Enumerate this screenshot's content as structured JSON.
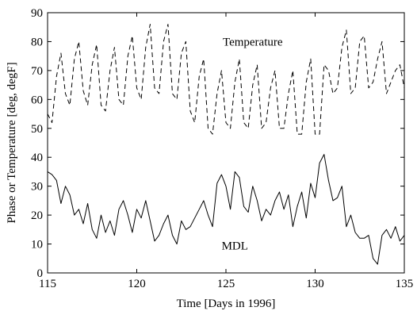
{
  "chart_data": {
    "type": "line",
    "title": "",
    "xlabel": "Time [Days in 1996]",
    "ylabel": "Phase or Temperature [deg, degF]",
    "xlim": [
      115,
      135
    ],
    "ylim": [
      0,
      90
    ],
    "xticks": [
      115,
      120,
      125,
      130,
      135
    ],
    "yticks": [
      0,
      10,
      20,
      30,
      40,
      50,
      60,
      70,
      80,
      90
    ],
    "grid": false,
    "annotations": [
      {
        "text": "Temperature",
        "x": 126.5,
        "y": 80
      },
      {
        "text": "MDL",
        "x": 125.5,
        "y": 9.5
      }
    ],
    "series": [
      {
        "style": "dashed",
        "color": "#000000",
        "x": [
          115.0,
          115.25,
          115.5,
          115.75,
          116.0,
          116.25,
          116.5,
          116.75,
          117.0,
          117.25,
          117.5,
          117.75,
          118.0,
          118.25,
          118.5,
          118.75,
          119.0,
          119.25,
          119.5,
          119.75,
          120.0,
          120.25,
          120.5,
          120.75,
          121.0,
          121.25,
          121.5,
          121.75,
          122.0,
          122.25,
          122.5,
          122.75,
          123.0,
          123.25,
          123.5,
          123.75,
          124.0,
          124.25,
          124.5,
          124.75,
          125.0,
          125.25,
          125.5,
          125.75,
          126.0,
          126.25,
          126.5,
          126.75,
          127.0,
          127.25,
          127.5,
          127.75,
          128.0,
          128.25,
          128.5,
          128.75,
          129.0,
          129.25,
          129.5,
          129.75,
          130.0,
          130.25,
          130.5,
          130.75,
          131.0,
          131.25,
          131.5,
          131.75,
          132.0,
          132.25,
          132.5,
          132.75,
          133.0,
          133.25,
          133.5,
          133.75,
          134.0,
          134.25,
          134.5,
          134.75,
          135.0
        ],
        "values": [
          55,
          52,
          68,
          76,
          62,
          58,
          74,
          80,
          63,
          58,
          72,
          79,
          58,
          56,
          70,
          78,
          60,
          58,
          75,
          82,
          64,
          60,
          78,
          86,
          64,
          62,
          80,
          86,
          62,
          60,
          76,
          80,
          56,
          52,
          68,
          74,
          50,
          48,
          62,
          70,
          52,
          50,
          66,
          74,
          52,
          50,
          65,
          72,
          50,
          52,
          64,
          70,
          50,
          50,
          62,
          70,
          48,
          48,
          66,
          74,
          48,
          48,
          72,
          70,
          62,
          64,
          78,
          84,
          62,
          64,
          80,
          82,
          64,
          66,
          74,
          80,
          62,
          66,
          70,
          72,
          64
        ]
      },
      {
        "style": "solid",
        "color": "#000000",
        "x": [
          115.0,
          115.25,
          115.5,
          115.75,
          116.0,
          116.25,
          116.5,
          116.75,
          117.0,
          117.25,
          117.5,
          117.75,
          118.0,
          118.25,
          118.5,
          118.75,
          119.0,
          119.25,
          119.5,
          119.75,
          120.0,
          120.25,
          120.5,
          120.75,
          121.0,
          121.25,
          121.5,
          121.75,
          122.0,
          122.25,
          122.5,
          122.75,
          123.0,
          123.25,
          123.5,
          123.75,
          124.0,
          124.25,
          124.5,
          124.75,
          125.0,
          125.25,
          125.5,
          125.75,
          126.0,
          126.25,
          126.5,
          126.75,
          127.0,
          127.25,
          127.5,
          127.75,
          128.0,
          128.25,
          128.5,
          128.75,
          129.0,
          129.25,
          129.5,
          129.75,
          130.0,
          130.25,
          130.5,
          130.75,
          131.0,
          131.25,
          131.5,
          131.75,
          132.0,
          132.25,
          132.5,
          132.75,
          133.0,
          133.25,
          133.5,
          133.75,
          134.0,
          134.25,
          134.5,
          134.75,
          135.0
        ],
        "values": [
          35,
          34,
          32,
          24,
          30,
          27,
          20,
          22,
          17,
          24,
          15,
          12,
          20,
          14,
          18,
          13,
          22,
          25,
          20,
          14,
          22,
          19,
          25,
          18,
          11,
          13,
          17,
          20,
          13,
          10,
          18,
          15,
          16,
          19,
          22,
          25,
          20,
          16,
          31,
          34,
          30,
          22,
          35,
          33,
          23,
          21,
          30,
          25,
          18,
          22,
          20,
          25,
          28,
          22,
          27,
          16,
          23,
          28,
          19,
          31,
          26,
          38,
          41,
          32,
          25,
          26,
          30,
          16,
          20,
          14,
          12,
          12,
          13,
          5,
          3,
          13,
          15,
          12,
          16,
          11,
          13
        ]
      }
    ]
  }
}
